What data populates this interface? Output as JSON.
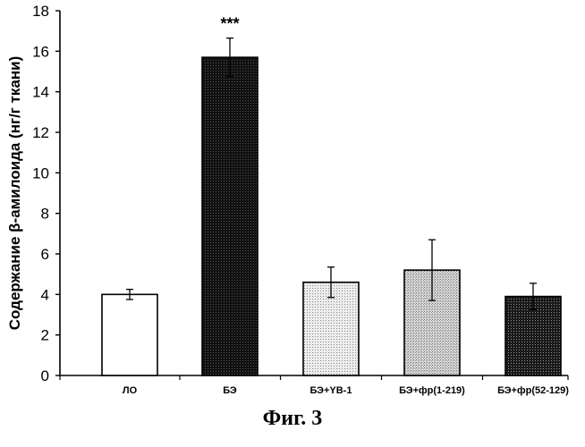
{
  "chart_data": {
    "type": "bar",
    "ylabel": "Содержание β-амилоида (нг/г ткани)",
    "xlabel": "",
    "ylim": [
      0,
      18
    ],
    "yticks": [
      0,
      2,
      4,
      6,
      8,
      10,
      12,
      14,
      16,
      18
    ],
    "categories": [
      "ЛО",
      "БЭ",
      "БЭ+YB-1",
      "БЭ+фр(1-219)",
      "БЭ+фр(52-129)"
    ],
    "values": [
      4.0,
      15.7,
      4.6,
      5.2,
      3.9
    ],
    "errors": [
      0.25,
      0.95,
      0.75,
      1.5,
      0.65
    ],
    "annotations": [
      {
        "category": "БЭ",
        "text": "***"
      }
    ],
    "bar_styles": [
      "white",
      "black-dotted",
      "light-dotted",
      "light-gray-dotted",
      "dark-dotted"
    ],
    "grid": false
  },
  "caption": "Фиг. 3"
}
